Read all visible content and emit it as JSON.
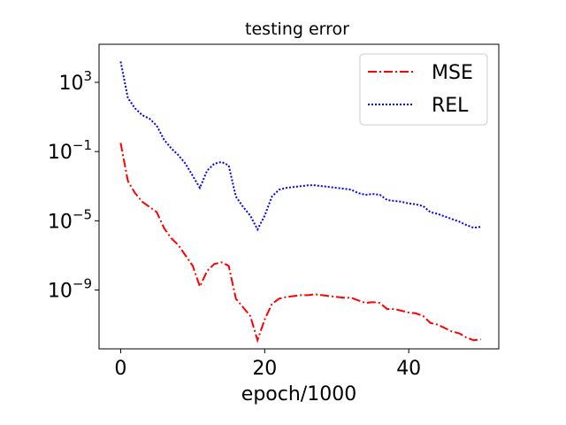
{
  "chart_data": {
    "type": "line",
    "title": "testing error",
    "xlabel": "epoch/1000",
    "ylabel": "",
    "xlim": [
      -3.0,
      52.5
    ],
    "ylim_log10": [
      -12.4,
      5.2
    ],
    "yscale": "log",
    "grid": false,
    "legend_position": "top-right",
    "x_ticks": [
      0,
      20,
      40
    ],
    "x_tick_labels": [
      "0",
      "20",
      "40"
    ],
    "y_ticks_log10": [
      3,
      -1,
      -5,
      -9
    ],
    "y_tick_labels": [
      {
        "base": "10",
        "exp": "3"
      },
      {
        "base": "10",
        "exp": "−1"
      },
      {
        "base": "10",
        "exp": "−5"
      },
      {
        "base": "10",
        "exp": "−9"
      }
    ],
    "series": [
      {
        "name": "MSE",
        "color": "#ff0000",
        "dash": "dashdot",
        "x": [
          0,
          1,
          2,
          3,
          4,
          5,
          6,
          7,
          8,
          9,
          10,
          11,
          12,
          13,
          14,
          15,
          16,
          17,
          18,
          19,
          20,
          21,
          22,
          23,
          24,
          25,
          26,
          27,
          28,
          29,
          30,
          31,
          32,
          33,
          34,
          35,
          36,
          37,
          38,
          39,
          40,
          41,
          42,
          43,
          44,
          45,
          46,
          47,
          48,
          49,
          50
        ],
        "log10_y": [
          -0.5,
          -2.7,
          -3.4,
          -3.9,
          -4.2,
          -4.5,
          -5.4,
          -6.0,
          -6.4,
          -7.0,
          -7.6,
          -8.8,
          -7.9,
          -7.5,
          -7.4,
          -7.6,
          -9.5,
          -10.0,
          -10.5,
          -11.9,
          -10.7,
          -9.8,
          -9.5,
          -9.4,
          -9.35,
          -9.3,
          -9.3,
          -9.25,
          -9.3,
          -9.35,
          -9.4,
          -9.45,
          -9.45,
          -9.6,
          -9.75,
          -9.7,
          -9.75,
          -10.1,
          -10.1,
          -10.2,
          -10.3,
          -10.35,
          -10.5,
          -10.9,
          -11.0,
          -11.2,
          -11.4,
          -11.5,
          -11.75,
          -11.9,
          -11.85
        ]
      },
      {
        "name": "REL",
        "color": "#0000ff",
        "dash": "dotted",
        "x": [
          0,
          1,
          2,
          3,
          4,
          5,
          6,
          7,
          8,
          9,
          10,
          11,
          12,
          13,
          14,
          15,
          16,
          17,
          18,
          19,
          20,
          21,
          22,
          23,
          24,
          25,
          26,
          27,
          28,
          29,
          30,
          31,
          32,
          33,
          34,
          35,
          36,
          37,
          38,
          39,
          40,
          41,
          42,
          43,
          44,
          45,
          46,
          47,
          48,
          49,
          50
        ],
        "log10_y": [
          4.2,
          2.1,
          1.5,
          1.1,
          0.9,
          0.5,
          -0.3,
          -0.8,
          -1.2,
          -1.7,
          -2.4,
          -3.1,
          -2.1,
          -1.7,
          -1.6,
          -1.8,
          -3.6,
          -4.2,
          -4.7,
          -5.5,
          -4.7,
          -3.6,
          -3.2,
          -3.1,
          -3.05,
          -3.0,
          -2.95,
          -2.95,
          -3.0,
          -3.05,
          -3.1,
          -3.15,
          -3.2,
          -3.4,
          -3.5,
          -3.45,
          -3.5,
          -3.8,
          -3.85,
          -3.9,
          -4.0,
          -4.05,
          -4.15,
          -4.5,
          -4.6,
          -4.75,
          -4.9,
          -5.05,
          -5.25,
          -5.4,
          -5.35
        ]
      }
    ]
  }
}
